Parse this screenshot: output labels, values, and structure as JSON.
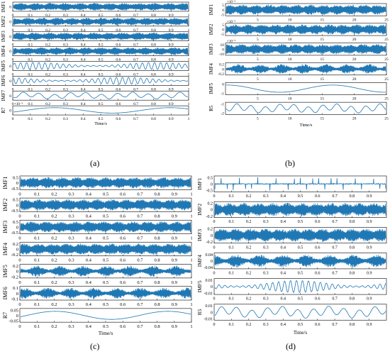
{
  "figure": {
    "panel_letters": [
      "(a)",
      "(b)",
      "(c)",
      "(d)"
    ],
    "signal_color": "#1f77b4",
    "axis_color": "#000000"
  },
  "chart_data": [
    {
      "panel": "(a)",
      "type": "line",
      "xlabel": "Time/s",
      "xlim": [
        0,
        1
      ],
      "xticks": [
        "0",
        "0.1",
        "0.2",
        "0.3",
        "0.4",
        "0.5",
        "0.6",
        "0.7",
        "0.8",
        "0.9",
        "1"
      ],
      "subplots": [
        {
          "ylabel": "IMF1",
          "yticks": [
            "0"
          ],
          "style": "dense"
        },
        {
          "ylabel": "IMF2",
          "yticks": [
            "0"
          ],
          "style": "dense"
        },
        {
          "ylabel": "IMF3",
          "yticks": [
            "0"
          ],
          "style": "dense"
        },
        {
          "ylabel": "IMF4",
          "yticks": [
            "0"
          ],
          "style": "dense"
        },
        {
          "ylabel": "IMF5",
          "yticks": [
            "0"
          ],
          "style": "medium"
        },
        {
          "ylabel": "IMF6",
          "yticks": [
            "0"
          ],
          "style": "medium"
        },
        {
          "ylabel": "IMF7",
          "yticks": [
            "0"
          ],
          "style": "wave"
        },
        {
          "ylabel": "R7",
          "yticks": [
            "0"
          ],
          "exponent": "×10⁻³",
          "style": "slow"
        }
      ]
    },
    {
      "panel": "(b)",
      "type": "line",
      "xlabel": "Time/s",
      "xlim": [
        0,
        25
      ],
      "xticks": [
        "5",
        "10",
        "15",
        "20",
        "25"
      ],
      "subplots": [
        {
          "ylabel": "IMF1",
          "yticks": [
            "5",
            "0",
            "-5"
          ],
          "exponent": "×10⁻³",
          "style": "dense"
        },
        {
          "ylabel": "IMF2",
          "yticks": [
            "5",
            "0",
            "-5"
          ],
          "exponent": "×10⁻³",
          "style": "dense"
        },
        {
          "ylabel": "IMF3",
          "yticks": [
            "10",
            "0",
            "-10"
          ],
          "exponent": "×10⁻³",
          "style": "dense"
        },
        {
          "ylabel": "IMF4",
          "yticks": [
            "0.2",
            "0",
            "-0.2"
          ],
          "style": "bursty"
        },
        {
          "ylabel": "IMF5",
          "yticks": [
            "0",
            "-1"
          ],
          "style": "slow"
        },
        {
          "ylabel": "R5",
          "yticks": [
            "-1",
            "-2"
          ],
          "style": "wave"
        }
      ]
    },
    {
      "panel": "(c)",
      "type": "line",
      "xlabel": "Time/s",
      "xlim": [
        0,
        1
      ],
      "xticks": [
        "0",
        "0.1",
        "0.2",
        "0.3",
        "0.4",
        "0.5",
        "0.6",
        "0.7",
        "0.8",
        "0.9",
        "1"
      ],
      "subplots": [
        {
          "ylabel": "IMF1",
          "yticks": [
            "0.5",
            "0",
            "-0.5"
          ],
          "style": "dense"
        },
        {
          "ylabel": "IMF2",
          "yticks": [
            "0.5",
            "0",
            "-0.5"
          ],
          "style": "dense"
        },
        {
          "ylabel": "IMF3",
          "yticks": [
            "0.5",
            "0",
            "-0.5"
          ],
          "style": "dense"
        },
        {
          "ylabel": "IMF4",
          "yticks": [
            "0.2",
            "0",
            "-0.2"
          ],
          "style": "dense"
        },
        {
          "ylabel": "IMF5",
          "yticks": [
            "0.2",
            "0",
            "-0.2"
          ],
          "style": "bursty"
        },
        {
          "ylabel": "IMF6",
          "yticks": [
            "0.1",
            "0",
            "-0.1"
          ],
          "style": "bursty"
        },
        {
          "ylabel": "R7",
          "yticks": [
            "0.05",
            "0",
            "-0.05"
          ],
          "style": "slow"
        }
      ]
    },
    {
      "panel": "(d)",
      "type": "line",
      "xlabel": "Time/s",
      "xlim": [
        0,
        1
      ],
      "xticks": [
        "0",
        "0.1",
        "0.2",
        "0.3",
        "0.4",
        "0.5",
        "0.6",
        "0.7",
        "0.8",
        "0.9"
      ],
      "subplots": [
        {
          "ylabel": "IMF1",
          "yticks": [
            "0.5",
            "0",
            "-0.5"
          ],
          "style": "spikes"
        },
        {
          "ylabel": "IMF2",
          "yticks": [
            "0.2",
            "0",
            "-0.2"
          ],
          "style": "dense"
        },
        {
          "ylabel": "IMF3",
          "yticks": [
            "0.2",
            "0",
            "-0.2"
          ],
          "style": "dense"
        },
        {
          "ylabel": "IMF4",
          "yticks": [
            "0.04",
            "0",
            "-0.04"
          ],
          "style": "bursty"
        },
        {
          "ylabel": "IMF5",
          "yticks": [
            "0.01",
            "0",
            "-0.01"
          ],
          "style": "medium"
        },
        {
          "ylabel": "R5",
          "yticks": [
            "0.01",
            "0",
            "-0.01"
          ],
          "style": "wave"
        }
      ]
    }
  ]
}
